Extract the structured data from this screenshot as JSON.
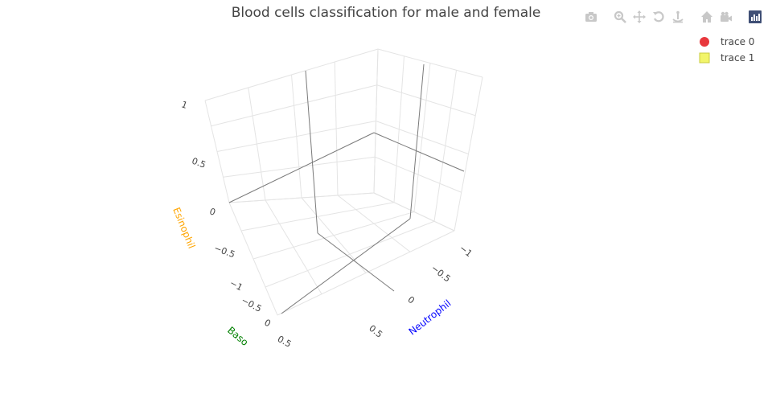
{
  "chart_data": {
    "type": "scatter3d",
    "title": "Blood cells classification for male and female",
    "axes": {
      "x": {
        "label": "Neutrophil",
        "label_color": "#0000ff",
        "ticks": [
          "−1",
          "−0.5",
          "0",
          "0.5"
        ],
        "range": [
          -1,
          1
        ]
      },
      "y": {
        "label": "Baso",
        "label_color": "#008000",
        "ticks": [
          "−1",
          "−0.5",
          "0",
          "0.5"
        ],
        "range": [
          -1,
          1
        ]
      },
      "z": {
        "label": "Esinophil",
        "label_color": "#ffa500",
        "ticks": [
          "1",
          "0.5",
          "0",
          "−0.5"
        ],
        "range": [
          -1,
          1
        ]
      }
    },
    "series": [
      {
        "name": "trace 0",
        "marker": "circle",
        "color": "#e8383d",
        "points": []
      },
      {
        "name": "trace 1",
        "marker": "square",
        "color": "#f2f56a",
        "points": []
      }
    ],
    "grid": true,
    "legend_position": "top-right"
  },
  "modebar": {
    "buttons": [
      "camera-icon",
      "zoom-icon",
      "pan-icon",
      "orbit-icon",
      "turntable-icon",
      "home-icon",
      "video-camera-icon",
      "plotly-logo-icon"
    ]
  }
}
